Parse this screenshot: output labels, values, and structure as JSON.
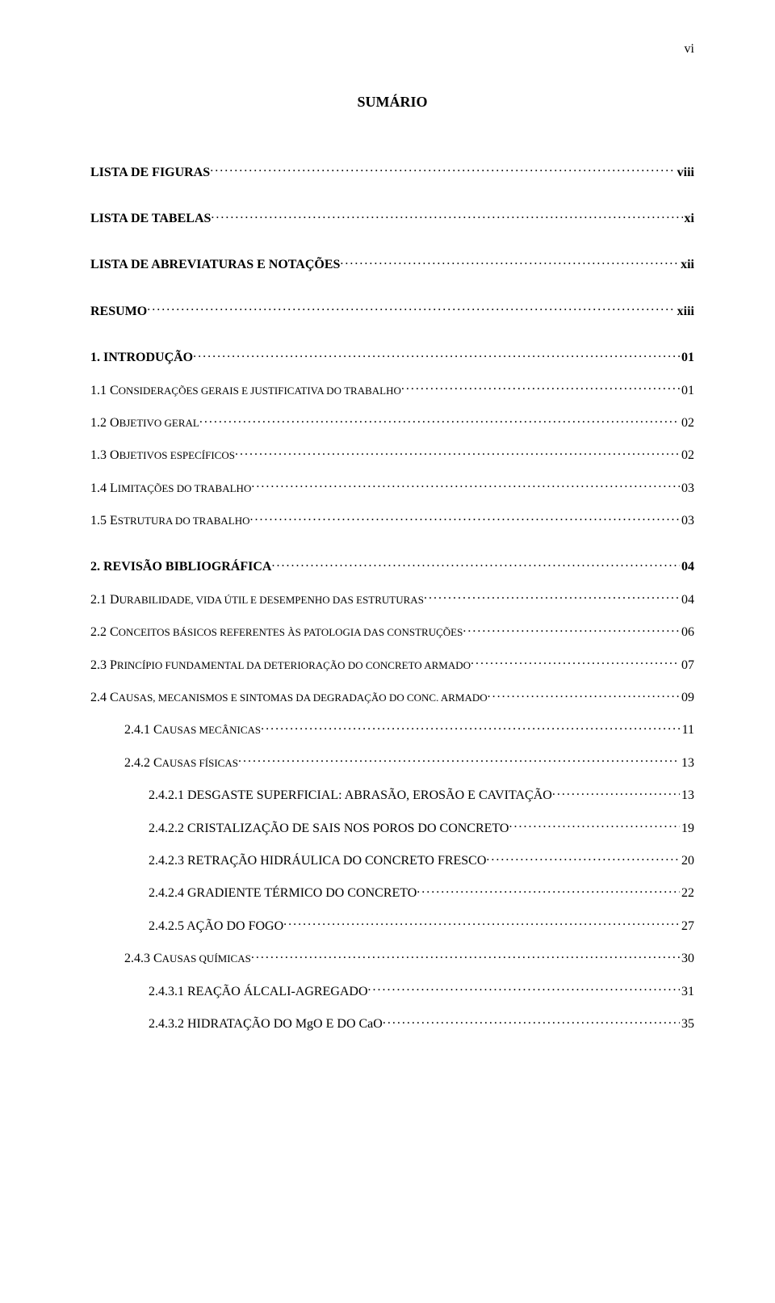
{
  "page_number_roman": "vi",
  "title": "SUMÁRIO",
  "colors": {
    "text": "#000000",
    "background": "#ffffff"
  },
  "typography": {
    "font_family": "Times New Roman",
    "body_size_pt": 12,
    "title_size_pt": 14,
    "title_weight": "bold"
  },
  "toc": [
    {
      "label": "LISTA DE FIGURAS",
      "page": "viii",
      "level": 0,
      "bold": true,
      "gap": "lg"
    },
    {
      "label": "LISTA DE TABELAS",
      "page": "xi",
      "level": 0,
      "bold": true,
      "gap": "md"
    },
    {
      "label": "LISTA DE ABREVIATURAS E NOTAÇÕES",
      "page": "xii",
      "level": 0,
      "bold": true,
      "gap": "md"
    },
    {
      "label": "RESUMO",
      "page": "xiii",
      "level": 0,
      "bold": true,
      "gap": "md"
    },
    {
      "label": "1. INTRODUÇÃO",
      "page": "01",
      "level": 0,
      "bold": true,
      "gap": "md"
    },
    {
      "label_pre": "1.1 C",
      "label_sc": "ONSIDERAÇÕES GERAIS E JUSTIFICATIVA DO TRABALHO",
      "page": "01",
      "level": 0
    },
    {
      "label_pre": "1.2 O",
      "label_sc": "BJETIVO GERAL",
      "page": "02",
      "level": 0
    },
    {
      "label_pre": "1.3 O",
      "label_sc": "BJETIVOS ESPECÍFICOS",
      "page": "02",
      "level": 0
    },
    {
      "label_pre": "1.4 L",
      "label_sc": "IMITAÇÕES DO TRABALHO",
      "page": "03",
      "level": 0
    },
    {
      "label_pre": "1.5 E",
      "label_sc": "STRUTURA DO TRABALHO",
      "page": "03",
      "level": 0
    },
    {
      "label": "2. REVISÃO BIBLIOGRÁFICA",
      "page": "04",
      "level": 0,
      "bold": true,
      "gap": "md"
    },
    {
      "label_pre": "2.1 D",
      "label_sc": "URABILIDADE, VIDA ÚTIL E DESEMPENHO DAS ESTRUTURAS",
      "page": "04",
      "level": 0
    },
    {
      "label_pre": "2.2 C",
      "label_sc": "ONCEITOS BÁSICOS REFERENTES ÀS PATOLOGIA DAS CONSTRUÇÕES",
      "page": "06",
      "level": 0
    },
    {
      "label_pre": "2.3 P",
      "label_sc": "RINCÍPIO FUNDAMENTAL DA DETERIORAÇÃO DO CONCRETO ARMADO",
      "page": "07",
      "level": 0
    },
    {
      "label_pre": "2.4 C",
      "label_sc": "AUSAS, MECANISMOS E SINTOMAS DA DEGRADAÇÃO DO CONC. ARMADO",
      "page": "09",
      "level": 0
    },
    {
      "label_pre": "2.4.1 C",
      "label_sc": "AUSAS MECÂNICAS",
      "page": "11",
      "level": 1
    },
    {
      "label_pre": "2.4.2 C",
      "label_sc": "AUSAS FÍSICAS",
      "page": "13",
      "level": 1
    },
    {
      "label": "2.4.2.1 DESGASTE SUPERFICIAL: ABRASÃO, EROSÃO E CAVITAÇÃO",
      "page": "13",
      "level": 2
    },
    {
      "label": "2.4.2.2 CRISTALIZAÇÃO DE SAIS NOS POROS DO CONCRETO",
      "page": "19",
      "level": 2
    },
    {
      "label": "2.4.2.3 RETRAÇÃO HIDRÁULICA DO CONCRETO FRESCO",
      "page": "20",
      "level": 2
    },
    {
      "label": "2.4.2.4 GRADIENTE TÉRMICO DO CONCRETO",
      "page": "22",
      "level": 2
    },
    {
      "label": "2.4.2.5 AÇÃO DO FOGO",
      "page": "27",
      "level": 2
    },
    {
      "label_pre": "2.4.3 C",
      "label_sc": "AUSAS QUÍMICAS",
      "page": "30",
      "level": 1
    },
    {
      "label": "2.4.3.1 REAÇÃO ÁLCALI-AGREGADO",
      "page": "31",
      "level": 2
    },
    {
      "label": "2.4.3.2 HIDRATAÇÃO DO MgO E  DO CaO",
      "page": "35",
      "level": 2
    }
  ]
}
